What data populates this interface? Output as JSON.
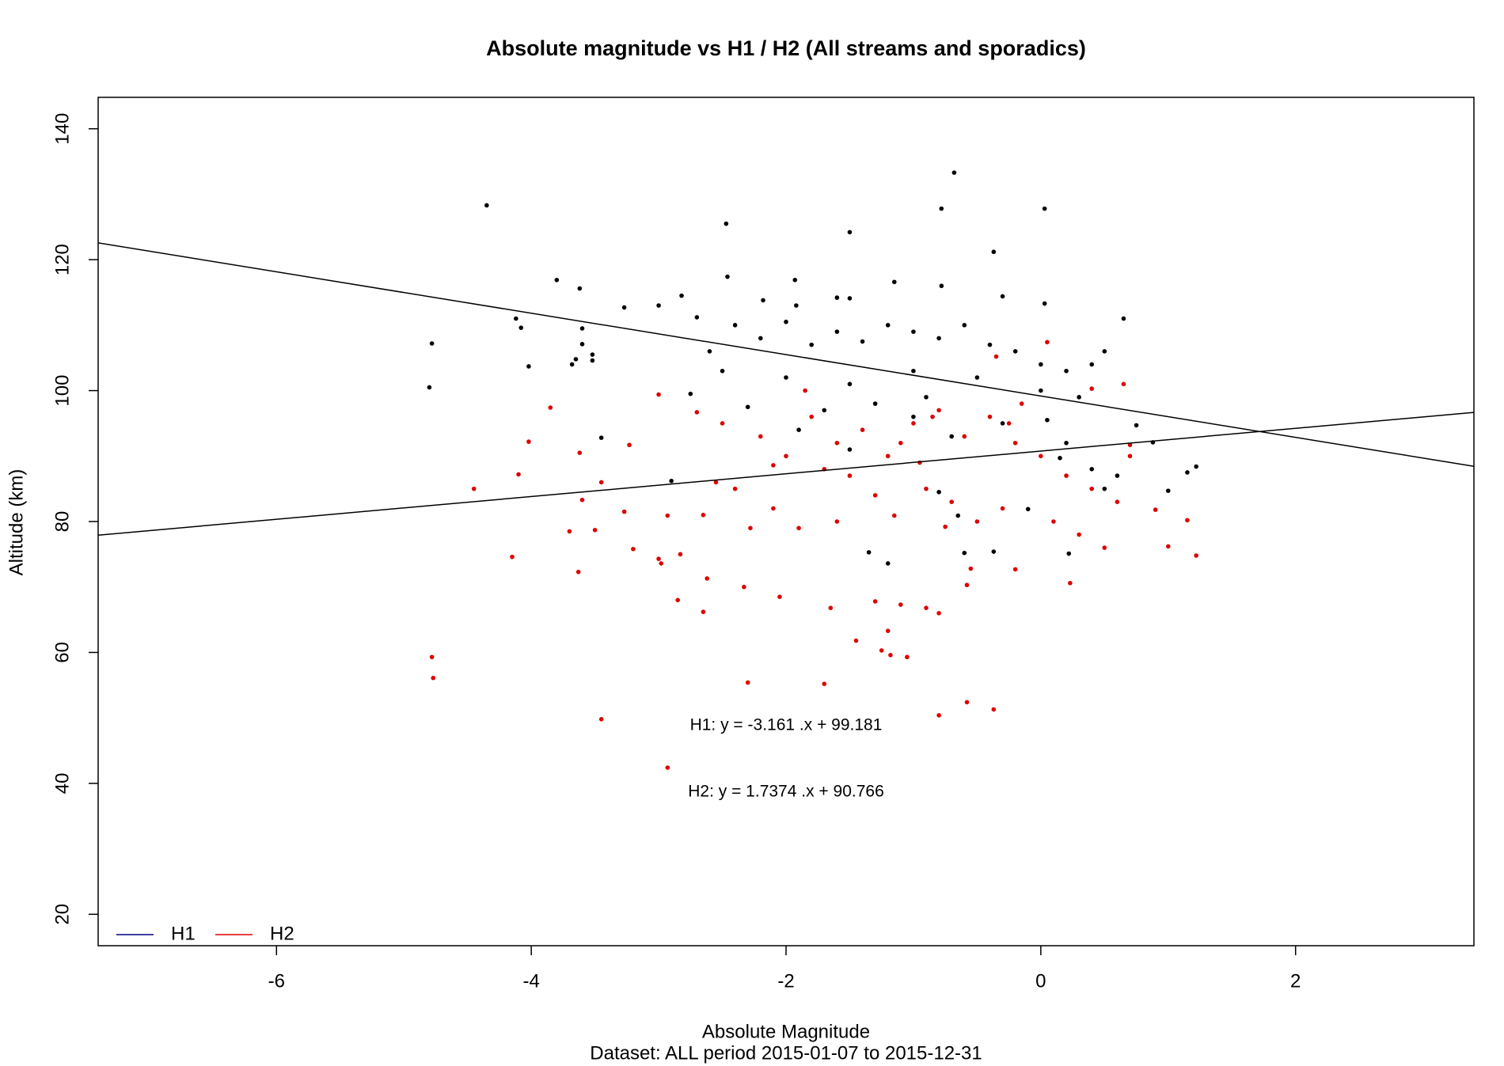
{
  "chart_data": {
    "type": "scatter",
    "title": "Absolute magnitude vs H1 / H2 (All streams and sporadics)",
    "x_label": "Absolute Magnitude",
    "subtitle": "Dataset: ALL period 2015-01-07 to 2015-12-31",
    "y_label": "Altitude (km)",
    "xlim": [
      -7.4,
      3.4
    ],
    "ylim": [
      15.2,
      144.8
    ],
    "xticks": [
      -6,
      -4,
      -2,
      0,
      2
    ],
    "yticks": [
      20,
      40,
      60,
      80,
      100,
      120,
      140
    ],
    "legend": "bottom-left",
    "annotations": [
      "H1: y = -3.161 .x + 99.181",
      "H2: y = 1.7374 .x + 90.766"
    ],
    "fit_lines": {
      "color": "#000000",
      "lines": [
        {
          "x": [
            -7.4,
            3.4
          ],
          "values": [
            122.57,
            88.43
          ]
        },
        {
          "x": [
            -7.4,
            3.4
          ],
          "values": [
            77.91,
            96.67
          ]
        }
      ]
    },
    "series": [
      {
        "name": "H1",
        "color": "#000000",
        "legend_color": "#000080",
        "x": [
          -4.35,
          -4.78,
          -4.8,
          -2.47,
          -1.5,
          -0.68,
          -0.78,
          0.03,
          -0.37,
          -3.8,
          -3.62,
          -1.93,
          -4.12,
          -4.08,
          -4.02,
          -3.6,
          -3.6,
          -3.52,
          -3.52,
          -3.68,
          -3.65,
          -3.27,
          -3.0,
          -2.82,
          -2.7,
          -2.46,
          -2.18,
          -1.92,
          -1.6,
          -1.5,
          -1.15,
          -0.78,
          -0.3,
          0.03,
          0.65,
          -2.6,
          -2.4,
          -2.2,
          -2.0,
          -1.8,
          -1.6,
          -1.4,
          -1.2,
          -1.0,
          -0.8,
          -0.6,
          -0.4,
          -0.2,
          0.0,
          0.2,
          0.4,
          0.5,
          -2.5,
          -2.0,
          -1.5,
          -1.0,
          -0.5,
          0.0,
          0.3,
          -3.45,
          -2.9,
          -1.2,
          -1.35,
          -0.6,
          -0.37,
          0.22,
          1.0,
          1.15,
          1.22,
          0.88,
          0.75,
          0.6,
          0.4,
          -0.8,
          -1.0,
          -0.7,
          -1.5,
          -1.9,
          -0.3,
          0.05,
          0.2,
          -1.3,
          -0.9,
          -2.3,
          -2.75,
          -1.7,
          0.15,
          -0.65,
          0.5,
          -0.1
        ],
        "values": [
          128.3,
          107.2,
          100.5,
          125.5,
          124.2,
          133.3,
          127.8,
          127.8,
          121.2,
          116.9,
          115.6,
          116.9,
          111,
          109.6,
          103.7,
          109.5,
          107.1,
          105.5,
          104.6,
          104,
          104.8,
          112.7,
          113,
          114.5,
          111.2,
          117.4,
          113.8,
          113,
          114.2,
          114.1,
          116.6,
          116,
          114.4,
          113.3,
          111,
          106,
          110,
          108,
          110.5,
          107,
          109,
          107.5,
          110,
          109,
          108,
          110,
          107,
          106,
          104,
          103,
          104,
          106,
          103,
          102,
          101,
          103,
          102,
          100,
          99,
          92.8,
          86.2,
          73.6,
          75.3,
          75.2,
          75.4,
          75.1,
          84.7,
          87.5,
          88.4,
          92.1,
          94.7,
          87,
          88,
          84.5,
          96,
          93,
          91,
          94,
          95,
          95.5,
          92,
          98,
          99,
          97.5,
          99.5,
          97,
          89.7,
          80.9,
          85,
          81.9
        ]
      },
      {
        "name": "H2",
        "color": "#dd0000",
        "legend_color": "#dd0000",
        "x": [
          -4.78,
          -4.77,
          -3.45,
          -2.93,
          -2.3,
          -1.7,
          -0.8,
          -0.58,
          -0.37,
          -3.85,
          -4.02,
          -4.1,
          -4.45,
          -4.15,
          -3.63,
          -3.7,
          -3.5,
          -3.6,
          -3.62,
          -3.45,
          -3.27,
          -3.23,
          -3.2,
          -3.0,
          -2.98,
          -2.93,
          -2.83,
          -2.85,
          -2.65,
          -2.62,
          -2.33,
          -2.05,
          -1.65,
          -1.3,
          -1.1,
          -0.9,
          -0.8,
          -1.45,
          -1.25,
          -1.05,
          -1.2,
          -1.18,
          -3.0,
          -2.5,
          -2.2,
          -2.0,
          -1.8,
          -1.6,
          -1.4,
          -1.2,
          -1.0,
          -0.8,
          -0.6,
          -0.4,
          -0.2,
          0.0,
          0.2,
          0.4,
          0.6,
          -2.4,
          -2.1,
          -1.9,
          -1.6,
          -1.3,
          -0.9,
          -0.7,
          -0.5,
          -0.3,
          0.1,
          0.3,
          0.5,
          0.7,
          0.65,
          0.4,
          1.0,
          1.15,
          1.22,
          0.9,
          0.7,
          0.05,
          -0.35,
          -1.7,
          -1.1,
          -0.85,
          -2.7,
          -2.1,
          -1.5,
          -0.75,
          -0.55,
          -0.58,
          -0.2,
          0.23,
          -2.28,
          -2.65,
          -2.55,
          -1.15,
          -0.95,
          -0.25,
          -1.85,
          -0.15
        ],
        "values": [
          59.3,
          56.1,
          49.8,
          42.4,
          55.4,
          55.2,
          50.4,
          52.4,
          51.3,
          97.4,
          92.2,
          87.2,
          85,
          74.6,
          72.3,
          78.5,
          78.7,
          83.3,
          90.5,
          86,
          81.5,
          91.7,
          75.8,
          74.3,
          73.6,
          80.9,
          75,
          68,
          66.2,
          71.3,
          70,
          68.5,
          66.8,
          67.8,
          67.3,
          66.8,
          66,
          61.8,
          60.3,
          59.3,
          63.3,
          59.6,
          99.4,
          95,
          93,
          90,
          96,
          92,
          94,
          90,
          95,
          97,
          93,
          96,
          92,
          90,
          87,
          85,
          83,
          85,
          82,
          79,
          80,
          84,
          85,
          83,
          80,
          82,
          80,
          78,
          76,
          90,
          101,
          100.3,
          76.2,
          80.2,
          74.8,
          81.8,
          91.7,
          107.4,
          105.2,
          88,
          92,
          96,
          96.7,
          88.6,
          87,
          79.2,
          72.8,
          70.3,
          72.7,
          70.6,
          79,
          81,
          86,
          80.9,
          89,
          95,
          100,
          98
        ]
      }
    ]
  }
}
